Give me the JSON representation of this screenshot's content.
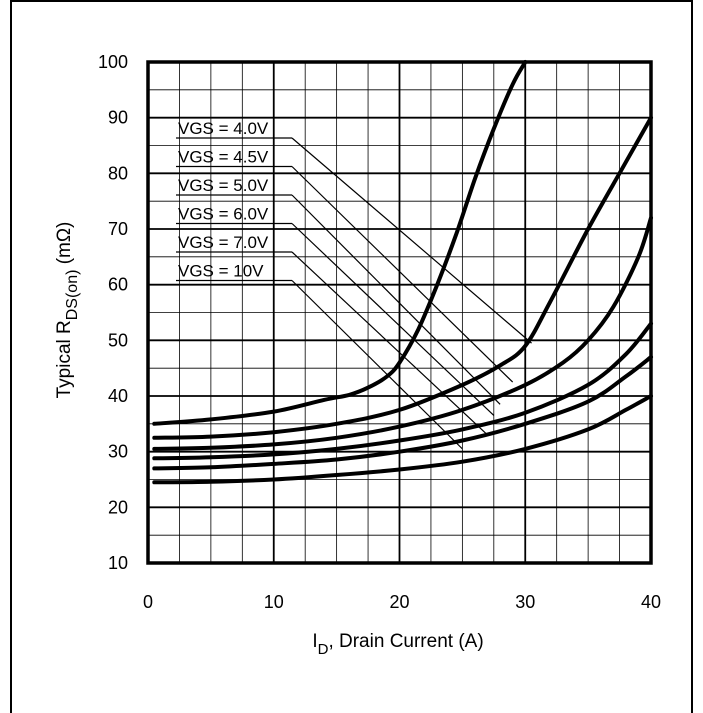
{
  "chart_data": {
    "type": "line",
    "title": "",
    "xlabel": {
      "main": "I",
      "sub": "D",
      "rest": ", Drain Current (A)"
    },
    "ylabel": {
      "prefix": "Typical  R",
      "sub": "DS(on)",
      "rest": " (mΩ)"
    },
    "xlim": [
      0,
      40
    ],
    "ylim": [
      10,
      100
    ],
    "x_ticks": [
      "0",
      "10",
      "20",
      "30",
      "40"
    ],
    "y_ticks": [
      "10",
      "20",
      "30",
      "40",
      "50",
      "60",
      "70",
      "80",
      "90",
      "100"
    ],
    "grid": true,
    "series": [
      {
        "name": "VGS = 4.0V",
        "x": [
          0.5,
          5,
          10,
          14,
          16,
          17.5,
          19,
          20,
          21.5,
          23,
          24.5,
          26,
          27.5,
          29,
          30
        ],
        "y": [
          35,
          35.8,
          37.2,
          39.3,
          40.2,
          41.5,
          43.5,
          46,
          52,
          60,
          69,
          79,
          88,
          96,
          100
        ]
      },
      {
        "name": "VGS = 4.5V",
        "x": [
          0.5,
          5,
          10,
          15,
          20,
          25,
          28,
          30,
          32,
          35,
          38,
          40
        ],
        "y": [
          32.5,
          32.7,
          33.5,
          35,
          37.5,
          42,
          45.5,
          49,
          57,
          70,
          82,
          90
        ]
      },
      {
        "name": "VGS = 5.0V",
        "x": [
          0.5,
          5,
          10,
          15,
          20,
          25,
          30,
          33,
          35,
          37,
          39,
          40
        ],
        "y": [
          30.5,
          30.7,
          31.3,
          32.5,
          34.5,
          37.5,
          42,
          46,
          50,
          56,
          65,
          72
        ]
      },
      {
        "name": "VGS = 6.0V",
        "x": [
          0.5,
          5,
          10,
          15,
          20,
          25,
          30,
          35,
          38,
          40
        ],
        "y": [
          28.8,
          29,
          29.5,
          30.5,
          32,
          34,
          37,
          42,
          47.5,
          53
        ]
      },
      {
        "name": "VGS = 7.0V",
        "x": [
          0.5,
          5,
          10,
          15,
          20,
          25,
          30,
          35,
          38,
          40
        ],
        "y": [
          27,
          27.2,
          27.8,
          28.6,
          30,
          32,
          35,
          39,
          43.5,
          47
        ]
      },
      {
        "name": "VGS = 10V",
        "x": [
          0.5,
          5,
          10,
          15,
          20,
          25,
          30,
          35,
          38,
          40
        ],
        "y": [
          24.5,
          24.6,
          25,
          25.8,
          26.8,
          28.2,
          30.5,
          34,
          37.5,
          40
        ]
      }
    ],
    "annotations": [
      {
        "label": "VGS = 4.0V",
        "target": [
          30.5,
          49.5
        ]
      },
      {
        "label": "VGS = 4.5V",
        "target": [
          29,
          42.5
        ]
      },
      {
        "label": "VGS = 5.0V",
        "target": [
          28,
          38.5
        ]
      },
      {
        "label": "VGS = 6.0V",
        "target": [
          27.5,
          36.5
        ]
      },
      {
        "label": "VGS = 7.0V",
        "target": [
          27,
          33
        ]
      },
      {
        "label": "VGS = 10V",
        "target": [
          25,
          30.5
        ]
      }
    ]
  }
}
